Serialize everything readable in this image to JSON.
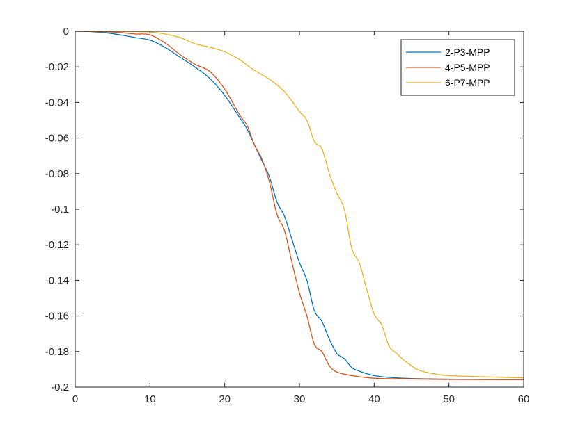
{
  "chart_data": {
    "type": "line",
    "title": "",
    "xlabel": "",
    "ylabel": "",
    "xlim": [
      0,
      60
    ],
    "ylim": [
      -0.2,
      0
    ],
    "x_ticks": [
      0,
      10,
      20,
      30,
      40,
      50,
      60
    ],
    "x_tick_labels": [
      "0",
      "10",
      "20",
      "30",
      "40",
      "50",
      "60"
    ],
    "y_ticks": [
      0,
      -0.02,
      -0.04,
      -0.06,
      -0.08,
      -0.1,
      -0.12,
      -0.14,
      -0.16,
      -0.18,
      -0.2
    ],
    "y_tick_labels": [
      "0",
      "-0.02",
      "-0.04",
      "-0.06",
      "-0.08",
      "-0.1",
      "-0.12",
      "-0.14",
      "-0.16",
      "-0.18",
      "-0.2"
    ],
    "grid": false,
    "legend_position": "top-right",
    "series": [
      {
        "name": "2-P3-MPP",
        "color": "#0072BD",
        "points": [
          [
            0,
            0
          ],
          [
            2,
            -0.0002
          ],
          [
            4,
            -0.0008
          ],
          [
            6,
            -0.002
          ],
          [
            8,
            -0.0035
          ],
          [
            10,
            -0.005
          ],
          [
            12,
            -0.009
          ],
          [
            14,
            -0.0145
          ],
          [
            16,
            -0.02
          ],
          [
            18,
            -0.0265
          ],
          [
            20,
            -0.036
          ],
          [
            22,
            -0.0485
          ],
          [
            23,
            -0.055
          ],
          [
            24,
            -0.064
          ],
          [
            25,
            -0.073
          ],
          [
            26,
            -0.082
          ],
          [
            27,
            -0.096
          ],
          [
            28,
            -0.104
          ],
          [
            29,
            -0.117
          ],
          [
            30,
            -0.13
          ],
          [
            31,
            -0.14
          ],
          [
            32,
            -0.157
          ],
          [
            33,
            -0.163
          ],
          [
            34,
            -0.173
          ],
          [
            35,
            -0.181
          ],
          [
            36,
            -0.184
          ],
          [
            37,
            -0.189
          ],
          [
            38,
            -0.191
          ],
          [
            40,
            -0.1935
          ],
          [
            42,
            -0.1945
          ],
          [
            45,
            -0.1952
          ],
          [
            50,
            -0.1955
          ],
          [
            55,
            -0.1957
          ],
          [
            60,
            -0.1958
          ]
        ]
      },
      {
        "name": "4-P5-MPP",
        "color": "#D95319",
        "points": [
          [
            0,
            0
          ],
          [
            2,
            -0.0001
          ],
          [
            4,
            -0.0003
          ],
          [
            6,
            -0.0007
          ],
          [
            8,
            -0.0015
          ],
          [
            10,
            -0.002
          ],
          [
            12,
            -0.0065
          ],
          [
            14,
            -0.013
          ],
          [
            16,
            -0.0185
          ],
          [
            18,
            -0.0225
          ],
          [
            20,
            -0.0325
          ],
          [
            22,
            -0.047
          ],
          [
            23,
            -0.053
          ],
          [
            24,
            -0.064
          ],
          [
            25,
            -0.072
          ],
          [
            26,
            -0.085
          ],
          [
            27,
            -0.103
          ],
          [
            28,
            -0.112
          ],
          [
            29,
            -0.13
          ],
          [
            30,
            -0.147
          ],
          [
            31,
            -0.16
          ],
          [
            32,
            -0.176
          ],
          [
            33,
            -0.18
          ],
          [
            34,
            -0.188
          ],
          [
            35,
            -0.1915
          ],
          [
            37,
            -0.1935
          ],
          [
            40,
            -0.195
          ],
          [
            45,
            -0.1955
          ],
          [
            50,
            -0.1957
          ],
          [
            55,
            -0.1958
          ],
          [
            60,
            -0.1958
          ]
        ]
      },
      {
        "name": "6-P7-MPP",
        "color": "#EDB120",
        "points": [
          [
            0,
            0
          ],
          [
            4,
            0
          ],
          [
            8,
            -0.0002
          ],
          [
            10,
            -0.0004
          ],
          [
            12,
            -0.0015
          ],
          [
            14,
            -0.0035
          ],
          [
            16,
            -0.007
          ],
          [
            18,
            -0.009
          ],
          [
            20,
            -0.0115
          ],
          [
            22,
            -0.016
          ],
          [
            24,
            -0.022
          ],
          [
            26,
            -0.027
          ],
          [
            28,
            -0.034
          ],
          [
            30,
            -0.045
          ],
          [
            31,
            -0.05
          ],
          [
            32,
            -0.062
          ],
          [
            33,
            -0.066
          ],
          [
            34,
            -0.08
          ],
          [
            35,
            -0.091
          ],
          [
            36,
            -0.1
          ],
          [
            37,
            -0.122
          ],
          [
            38,
            -0.13
          ],
          [
            39,
            -0.145
          ],
          [
            40,
            -0.159
          ],
          [
            41,
            -0.165
          ],
          [
            42,
            -0.177
          ],
          [
            43,
            -0.181
          ],
          [
            44,
            -0.185
          ],
          [
            45,
            -0.188
          ],
          [
            46,
            -0.1905
          ],
          [
            48,
            -0.1925
          ],
          [
            50,
            -0.1935
          ],
          [
            55,
            -0.1942
          ],
          [
            60,
            -0.1948
          ]
        ]
      }
    ]
  }
}
